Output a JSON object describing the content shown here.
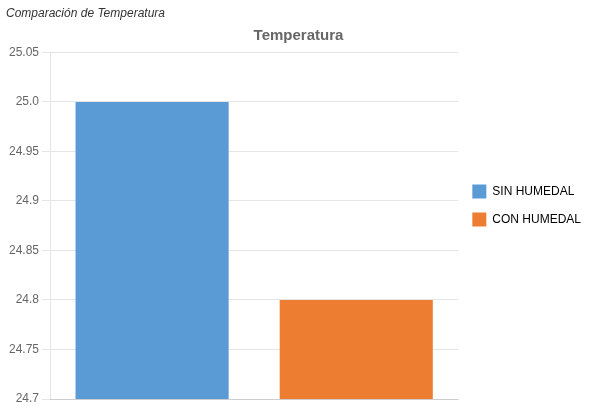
{
  "chart_data": {
    "type": "bar",
    "title": "Temperatura",
    "subtitle": "Comparación de Temperatura",
    "categories": [
      "SIN HUMEDAL",
      "CON HUMEDAL"
    ],
    "values": [
      25.0,
      24.8
    ],
    "colors": [
      "#5B9BD5",
      "#ED7D31"
    ],
    "ylim": [
      24.7,
      25.05
    ],
    "yticks": [
      24.7,
      24.75,
      24.8,
      24.85,
      24.9,
      24.95,
      {
        "value": 25.0,
        "label": "25.0"
      },
      25.05
    ],
    "grid": true,
    "legend": "right",
    "tick_labels": "y"
  }
}
